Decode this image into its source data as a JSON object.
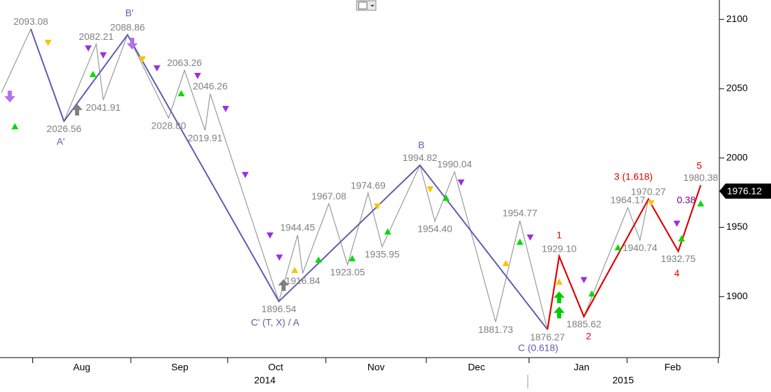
{
  "chart_data": {
    "type": "line",
    "xlim": [
      0,
      154
    ],
    "ylim": [
      1856,
      2114
    ],
    "yticks": [
      1900,
      1950,
      2000,
      2050,
      2100
    ],
    "xticks": [
      {
        "value": 17.5,
        "label": "Aug"
      },
      {
        "value": 38.5,
        "label": "Sep"
      },
      {
        "value": 59,
        "label": "Oct"
      },
      {
        "value": 80.5,
        "label": "Nov"
      },
      {
        "value": 102,
        "label": "Dec"
      },
      {
        "value": 124.5,
        "label": "Jan"
      },
      {
        "value": 144,
        "label": "Feb"
      }
    ],
    "years": [
      {
        "text": "2014",
        "x": 56.7
      },
      {
        "text": "2015",
        "x": 133.4
      }
    ],
    "year_break": 113,
    "price_path": {
      "color": "#999999",
      "label_color": "#808080",
      "x": [
        0.3,
        6.6,
        13.7,
        20.6,
        22.1,
        27.3,
        36.1,
        39.5,
        43.9,
        45.0,
        59.7,
        63.7,
        64.8,
        70.4,
        74.4,
        78.8,
        81.8,
        89.9,
        93.1,
        97.3,
        106.1,
        111.3,
        117.2,
        119.7,
        125.0,
        134.4,
        137.0,
        138.8,
        145.2,
        150.0
      ],
      "values": [
        2047,
        2093.08,
        2026.56,
        2082.21,
        2041.91,
        2088.86,
        2028.8,
        2063.26,
        2019.91,
        2046.26,
        1896.54,
        1944.45,
        1916.84,
        1967.08,
        1923.05,
        1974.69,
        1935.95,
        1994.82,
        1954.4,
        1990.04,
        1881.73,
        1954.77,
        1876.27,
        1929.1,
        1885.62,
        1964.17,
        1940.74,
        1970.27,
        1932.75,
        1980.38
      ],
      "value_labels": [
        null,
        "2093.08",
        "2026.56",
        "2082.21",
        "2041.91",
        "2088.86",
        "2028.80",
        "2063.26",
        "2019.91",
        "2046.26",
        "1896.54",
        "1944.45",
        "1916.84",
        "1967.08",
        "1923.05",
        "1974.69",
        "1935.95",
        "1994.82",
        "1954.40",
        "1990.04",
        "1881.73",
        "1954.77",
        "1876.27",
        "1929.10",
        "1885.62",
        "1964.17",
        "1940.74",
        "1970.27",
        "1932.75",
        "1980.38"
      ]
    },
    "abc_path": {
      "color": "#5b5bb0",
      "x": [
        6.6,
        13.7,
        27.3,
        59.7,
        89.9,
        117.2
      ],
      "values": [
        2093.08,
        2026.56,
        2088.86,
        1896.54,
        1994.82,
        1876.27
      ]
    },
    "impulse_path": {
      "color": "#e00000",
      "x": [
        117.2,
        119.7,
        125.0,
        138.8,
        145.2,
        150.0
      ],
      "values": [
        1876.27,
        1929.1,
        1885.62,
        1970.27,
        1932.75,
        1980.38
      ]
    },
    "wave_labels": [
      {
        "text": "A'",
        "x": 13,
        "y": 2011.3,
        "color": "#5b5bb0"
      },
      {
        "text": "B'",
        "x": 27.7,
        "y": 2104.1,
        "color": "#5b5bb0"
      },
      {
        "text": "C' (T, X) / A",
        "x": 58.9,
        "y": 1880.8,
        "color": "#5b5bb0"
      },
      {
        "text": "B",
        "x": 90.2,
        "y": 2008.8,
        "color": "#5b5bb0"
      },
      {
        "text": "C (0.618)",
        "x": 115.2,
        "y": 1862.5,
        "color": "#5b5bb0"
      },
      {
        "text": "1",
        "x": 119.7,
        "y": 1943.8,
        "color": "#e00000"
      },
      {
        "text": "2",
        "x": 126,
        "y": 1870.9,
        "color": "#e00000"
      },
      {
        "text": "3 (1.618)",
        "x": 135.6,
        "y": 1986,
        "color": "#e00000"
      },
      {
        "text": "4",
        "x": 144.9,
        "y": 1916.5,
        "color": "#e00000"
      },
      {
        "text": "5",
        "x": 149.7,
        "y": 1994,
        "color": "#e00000"
      },
      {
        "text": "0.38",
        "x": 146.9,
        "y": 1969.1,
        "color": "#800080"
      }
    ],
    "markers": [
      {
        "shape": "up",
        "color": "#00dd00",
        "x": 3.2,
        "y": 2022.7
      },
      {
        "shape": "up",
        "color": "#00dd00",
        "x": 19.9,
        "y": 2060.4
      },
      {
        "shape": "up",
        "color": "#00dd00",
        "x": 38.8,
        "y": 2046.5
      },
      {
        "shape": "up",
        "color": "#00dd00",
        "x": 68.2,
        "y": 1926.5
      },
      {
        "shape": "up",
        "color": "#00dd00",
        "x": 75.4,
        "y": 1927.5
      },
      {
        "shape": "up",
        "color": "#00dd00",
        "x": 83,
        "y": 1946.8
      },
      {
        "shape": "up",
        "color": "#00dd00",
        "x": 95.5,
        "y": 1971.1
      },
      {
        "shape": "up",
        "color": "#00dd00",
        "x": 111.3,
        "y": 1939.4
      },
      {
        "shape": "up",
        "color": "#00dd00",
        "x": 126.7,
        "y": 1902.1
      },
      {
        "shape": "up",
        "color": "#00dd00",
        "x": 132.3,
        "y": 1935.4
      },
      {
        "shape": "up",
        "color": "#00dd00",
        "x": 145.9,
        "y": 1941.8
      },
      {
        "shape": "up",
        "color": "#00dd00",
        "x": 150,
        "y": 1967.1
      },
      {
        "shape": "down",
        "color": "#ffc000",
        "x": 10.3,
        "y": 2083.3
      },
      {
        "shape": "down",
        "color": "#ffc000",
        "x": 30.5,
        "y": 2071.4
      },
      {
        "shape": "up",
        "color": "#ffc000",
        "x": 63.1,
        "y": 1919
      },
      {
        "shape": "down",
        "color": "#ffc000",
        "x": 80.8,
        "y": 1965.2
      },
      {
        "shape": "down",
        "color": "#ffc000",
        "x": 92.1,
        "y": 1977.6
      },
      {
        "shape": "up",
        "color": "#ffc000",
        "x": 108.3,
        "y": 1924
      },
      {
        "shape": "up",
        "color": "#ffc000",
        "x": 119.7,
        "y": 1910.6
      },
      {
        "shape": "down",
        "color": "#ffc000",
        "x": 139.4,
        "y": 1967.6
      },
      {
        "shape": "down",
        "color": "#9b30e0",
        "x": 18.9,
        "y": 2079.3
      },
      {
        "shape": "down",
        "color": "#9b30e0",
        "x": 22.1,
        "y": 2074.3
      },
      {
        "shape": "down",
        "color": "#9b30e0",
        "x": 33.6,
        "y": 2064.9
      },
      {
        "shape": "down",
        "color": "#9b30e0",
        "x": 42.3,
        "y": 2059.4
      },
      {
        "shape": "down",
        "color": "#9b30e0",
        "x": 48.3,
        "y": 2035.6
      },
      {
        "shape": "down",
        "color": "#9b30e0",
        "x": 52.5,
        "y": 1988
      },
      {
        "shape": "down",
        "color": "#9b30e0",
        "x": 57.8,
        "y": 1944.3
      },
      {
        "shape": "down",
        "color": "#9b30e0",
        "x": 59.8,
        "y": 1928.4
      },
      {
        "shape": "down",
        "color": "#9b30e0",
        "x": 98.7,
        "y": 1982.5
      },
      {
        "shape": "down",
        "color": "#9b30e0",
        "x": 113.5,
        "y": 1942.8
      },
      {
        "shape": "down",
        "color": "#9b30e0",
        "x": 125,
        "y": 1912.1
      },
      {
        "shape": "down",
        "color": "#9b30e0",
        "x": 144.9,
        "y": 1952.8
      },
      {
        "shape": "arrow-down",
        "color": "#b070f0",
        "x": 2.1,
        "y": 2044.6
      },
      {
        "shape": "arrow-down",
        "color": "#b070f0",
        "x": 28.3,
        "y": 2082.8
      },
      {
        "shape": "arrow-up",
        "color": "#808080",
        "x": 16.5,
        "y": 2034.6
      },
      {
        "shape": "arrow-up",
        "color": "#808080",
        "x": 60.7,
        "y": 1908.1
      },
      {
        "shape": "arrow-up",
        "color": "#00cc00",
        "x": 119.7,
        "y": 1899.2
      },
      {
        "shape": "arrow-up",
        "color": "#00cc00",
        "x": 119.7,
        "y": 1888.3
      }
    ],
    "last_price": 1976.12,
    "last_price_label": "1976.12"
  }
}
